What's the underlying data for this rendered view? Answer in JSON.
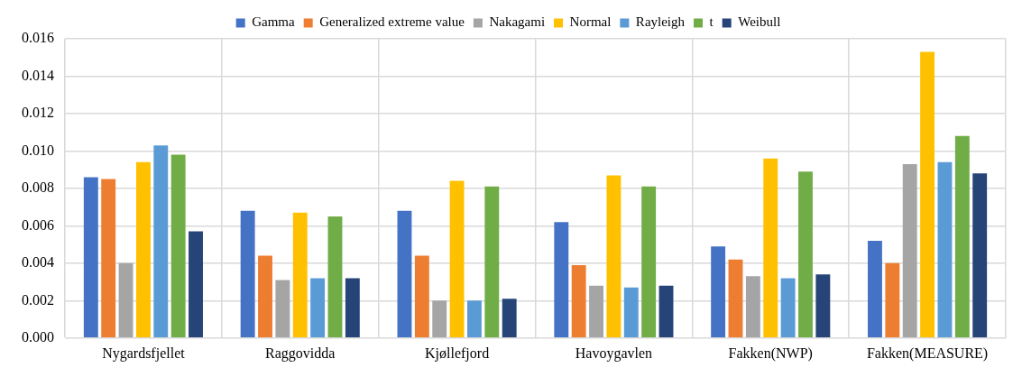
{
  "chart_data": {
    "type": "bar",
    "categories": [
      "Nygardsfjellet",
      "Raggovidda",
      "Kjøllefjord",
      "Havoygavlen",
      "Fakken(NWP)",
      "Fakken(MEASURE)"
    ],
    "series": [
      {
        "name": "Gamma",
        "color": "#4472c4",
        "values": [
          0.0086,
          0.0068,
          0.0068,
          0.0062,
          0.0049,
          0.0052
        ]
      },
      {
        "name": "Generalized extreme value",
        "color": "#ed7d31",
        "values": [
          0.0085,
          0.0044,
          0.0044,
          0.0039,
          0.0042,
          0.004
        ]
      },
      {
        "name": "Nakagami",
        "color": "#a5a5a5",
        "values": [
          0.004,
          0.0031,
          0.002,
          0.0028,
          0.0033,
          0.0093
        ]
      },
      {
        "name": "Normal",
        "color": "#ffc000",
        "values": [
          0.0094,
          0.0067,
          0.0084,
          0.0087,
          0.0096,
          0.0153
        ]
      },
      {
        "name": "Rayleigh",
        "color": "#5b9bd5",
        "values": [
          0.0103,
          0.0032,
          0.002,
          0.0027,
          0.0032,
          0.0094
        ]
      },
      {
        "name": "t",
        "color": "#70ad47",
        "values": [
          0.0098,
          0.0065,
          0.0081,
          0.0081,
          0.0089,
          0.0108
        ]
      },
      {
        "name": "Weibull",
        "color": "#264478",
        "values": [
          0.0057,
          0.0032,
          0.0021,
          0.0028,
          0.0034,
          0.0088
        ]
      }
    ],
    "ylim": [
      0,
      0.016
    ],
    "yticks": [
      {
        "value": 0,
        "label": "0.000"
      },
      {
        "value": 0.002,
        "label": "0.002"
      },
      {
        "value": 0.004,
        "label": "0.004"
      },
      {
        "value": 0.006,
        "label": "0.006"
      },
      {
        "value": 0.008,
        "label": "0.008"
      },
      {
        "value": 0.01,
        "label": "0.010"
      },
      {
        "value": 0.012,
        "label": "0.012"
      },
      {
        "value": 0.014,
        "label": "0.014"
      },
      {
        "value": 0.016,
        "label": "0.016"
      }
    ],
    "grid": true,
    "legend": "top"
  }
}
